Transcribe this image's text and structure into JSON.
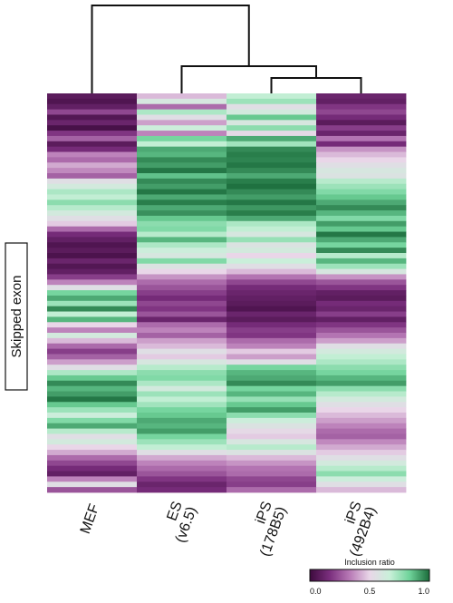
{
  "chart_data": {
    "type": "heatmap",
    "row_label": "Skipped exon",
    "columns": [
      "MEF",
      "ES\n(v6.5)",
      "iPS\n(178B5)",
      "iPS\n(492B4)"
    ],
    "column_label_lines": [
      [
        "MEF"
      ],
      [
        "ES",
        "(v6.5)"
      ],
      [
        "iPS",
        "(178B5)"
      ],
      [
        "iPS",
        "(492B4)"
      ]
    ],
    "dendrogram": [
      {
        "merge": [
          "iPS (178B5)",
          "iPS (492B4)"
        ],
        "level": 1
      },
      {
        "merge": [
          "ES (v6.5)",
          "iPS cluster"
        ],
        "level": 2
      },
      {
        "merge": [
          "MEF",
          "ES/iPS cluster"
        ],
        "level": 3
      }
    ],
    "colorbar": {
      "title": "Inclusion ratio",
      "ticks": [
        "0.0",
        "0.5",
        "1.0"
      ],
      "range": [
        0.0,
        1.0
      ],
      "colors": [
        "#3d0a3d",
        "#7b2f7e",
        "#b87ab6",
        "#e9d6e8",
        "#c9f0d9",
        "#6fd39a",
        "#1a6b3a"
      ]
    },
    "values": [
      [
        0.08,
        0.45,
        0.68,
        0.12
      ],
      [
        0.05,
        0.6,
        0.75,
        0.1
      ],
      [
        0.1,
        0.3,
        0.55,
        0.18
      ],
      [
        0.22,
        0.72,
        0.62,
        0.22
      ],
      [
        0.06,
        0.55,
        0.85,
        0.15
      ],
      [
        0.12,
        0.4,
        0.6,
        0.08
      ],
      [
        0.03,
        0.65,
        0.78,
        0.2
      ],
      [
        0.18,
        0.35,
        0.52,
        0.12
      ],
      [
        0.28,
        0.82,
        0.9,
        0.32
      ],
      [
        0.08,
        0.68,
        0.74,
        0.15
      ],
      [
        0.15,
        0.9,
        0.95,
        0.38
      ],
      [
        0.35,
        0.88,
        0.97,
        0.45
      ],
      [
        0.3,
        0.95,
        0.96,
        0.5
      ],
      [
        0.42,
        0.92,
        0.98,
        0.55
      ],
      [
        0.36,
        0.98,
        0.95,
        0.6
      ],
      [
        0.28,
        0.86,
        0.9,
        0.58
      ],
      [
        0.55,
        0.95,
        0.97,
        0.7
      ],
      [
        0.62,
        0.92,
        0.99,
        0.75
      ],
      [
        0.72,
        0.98,
        0.95,
        0.8
      ],
      [
        0.68,
        0.9,
        0.92,
        0.85
      ],
      [
        0.78,
        0.97,
        0.98,
        0.9
      ],
      [
        0.7,
        0.9,
        0.93,
        0.95
      ],
      [
        0.62,
        0.94,
        0.97,
        0.88
      ],
      [
        0.55,
        0.85,
        0.9,
        0.8
      ],
      [
        0.48,
        0.78,
        0.72,
        0.92
      ],
      [
        0.3,
        0.8,
        0.68,
        0.85
      ],
      [
        0.15,
        0.7,
        0.6,
        0.98
      ],
      [
        0.1,
        0.88,
        0.76,
        0.9
      ],
      [
        0.05,
        0.72,
        0.58,
        0.82
      ],
      [
        0.08,
        0.65,
        0.62,
        0.95
      ],
      [
        0.04,
        0.6,
        0.5,
        0.7
      ],
      [
        0.12,
        0.8,
        0.66,
        0.88
      ],
      [
        0.06,
        0.58,
        0.55,
        0.75
      ],
      [
        0.1,
        0.5,
        0.45,
        0.6
      ],
      [
        0.2,
        0.38,
        0.32,
        0.38
      ],
      [
        0.35,
        0.3,
        0.22,
        0.25
      ],
      [
        0.55,
        0.25,
        0.15,
        0.18
      ],
      [
        0.82,
        0.2,
        0.12,
        0.1
      ],
      [
        0.9,
        0.15,
        0.1,
        0.08
      ],
      [
        0.75,
        0.22,
        0.08,
        0.15
      ],
      [
        0.95,
        0.18,
        0.05,
        0.12
      ],
      [
        0.68,
        0.25,
        0.12,
        0.2
      ],
      [
        0.88,
        0.12,
        0.08,
        0.1
      ],
      [
        0.5,
        0.3,
        0.15,
        0.18
      ],
      [
        0.35,
        0.35,
        0.2,
        0.25
      ],
      [
        0.62,
        0.28,
        0.18,
        0.32
      ],
      [
        0.45,
        0.4,
        0.3,
        0.4
      ],
      [
        0.3,
        0.45,
        0.35,
        0.55
      ],
      [
        0.2,
        0.55,
        0.48,
        0.62
      ],
      [
        0.28,
        0.48,
        0.4,
        0.68
      ],
      [
        0.4,
        0.6,
        0.55,
        0.72
      ],
      [
        0.55,
        0.7,
        0.82,
        0.78
      ],
      [
        0.72,
        0.78,
        0.88,
        0.82
      ],
      [
        0.85,
        0.8,
        0.9,
        0.88
      ],
      [
        0.95,
        0.72,
        0.95,
        0.92
      ],
      [
        0.88,
        0.62,
        0.82,
        0.78
      ],
      [
        0.92,
        0.75,
        0.88,
        0.7
      ],
      [
        0.98,
        0.68,
        0.76,
        0.62
      ],
      [
        0.85,
        0.74,
        0.85,
        0.55
      ],
      [
        0.75,
        0.82,
        0.92,
        0.5
      ],
      [
        0.65,
        0.85,
        0.78,
        0.45
      ],
      [
        0.8,
        0.9,
        0.65,
        0.4
      ],
      [
        0.9,
        0.88,
        0.58,
        0.35
      ],
      [
        0.7,
        0.92,
        0.52,
        0.3
      ],
      [
        0.55,
        0.82,
        0.48,
        0.28
      ],
      [
        0.62,
        0.75,
        0.6,
        0.36
      ],
      [
        0.5,
        0.68,
        0.7,
        0.42
      ],
      [
        0.42,
        0.55,
        0.58,
        0.48
      ],
      [
        0.3,
        0.42,
        0.45,
        0.55
      ],
      [
        0.22,
        0.35,
        0.38,
        0.62
      ],
      [
        0.15,
        0.3,
        0.32,
        0.7
      ],
      [
        0.1,
        0.25,
        0.3,
        0.78
      ],
      [
        0.35,
        0.18,
        0.22,
        0.65
      ],
      [
        0.55,
        0.12,
        0.2,
        0.55
      ],
      [
        0.25,
        0.15,
        0.3,
        0.45
      ]
    ]
  }
}
